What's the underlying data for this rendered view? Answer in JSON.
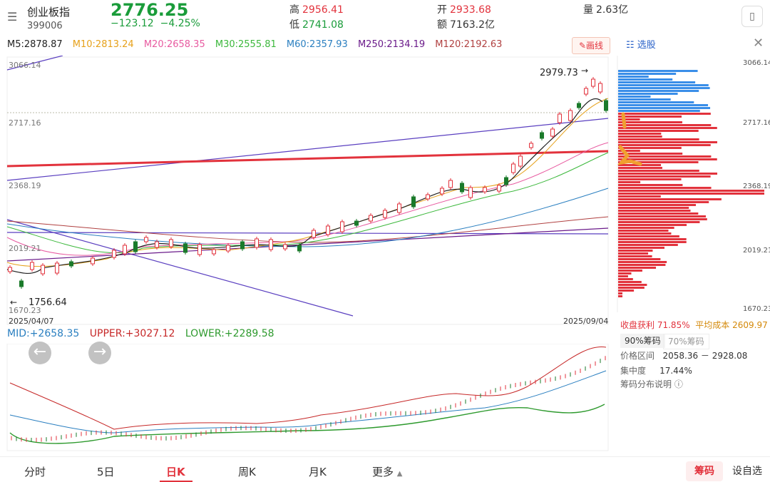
{
  "header": {
    "menu_icon": "menu-icon",
    "name": "创业板指",
    "code": "399006",
    "price": "2776.25",
    "change": "−123.12",
    "change_pct": "−4.25%",
    "high_label": "高",
    "high": "2956.41",
    "low_label": "低",
    "low": "2741.08",
    "open_label": "开",
    "open": "2933.68",
    "amount_label": "额",
    "amount": "7163.2亿",
    "volume_label": "量",
    "volume": "2.63亿",
    "device_icon": "phone-rotate-icon"
  },
  "ma": {
    "m5": "M5:2878.87",
    "m10": "M10:2813.24",
    "m20": "M20:2658.35",
    "m30": "M30:2555.81",
    "m60": "M60:2357.93",
    "m250": "M250:2134.19",
    "m120": "M120:2192.63",
    "colors": {
      "m5": "#222222",
      "m10": "#e6a11a",
      "m20": "#e85aa0",
      "m30": "#3cb83c",
      "m60": "#2a7fc0",
      "m250": "#6a1a8a",
      "m120": "#b04040"
    }
  },
  "draw_button": "画线",
  "side": {
    "xuangu": "选股",
    "prices": [
      "3066.14",
      "2717.16",
      "2368.19",
      "2019.21",
      "1670.23"
    ],
    "profit_label": "收盘获利",
    "profit_value": "71.85%",
    "avg_cost_label": "平均成本",
    "avg_cost_value": "2609.97",
    "tab_90": "90%筹码",
    "tab_70": "70%筹码",
    "range_label": "价格区间",
    "range_value": "2058.36 － 2928.08",
    "concentration_label": "集中度",
    "concentration_value": "17.44%",
    "explain": "筹码分布说明"
  },
  "chart": {
    "left_prices": [
      "3066.14",
      "2717.16",
      "2368.19",
      "2019.21",
      "1670.23"
    ],
    "max_label": "2979.73",
    "min_label": "1756.64",
    "date_start": "2025/04/07",
    "date_end": "2025/09/04"
  },
  "boll": {
    "mid": "MID:+2658.35",
    "upper": "UPPER:+3027.12",
    "lower": "LOWER:+2289.58"
  },
  "tabs": {
    "fenshi": "分时",
    "five_day": "5日",
    "day_k": "日K",
    "week_k": "周K",
    "month_k": "月K",
    "more": "更多",
    "chouma": "筹码",
    "settings": "设自选"
  }
}
